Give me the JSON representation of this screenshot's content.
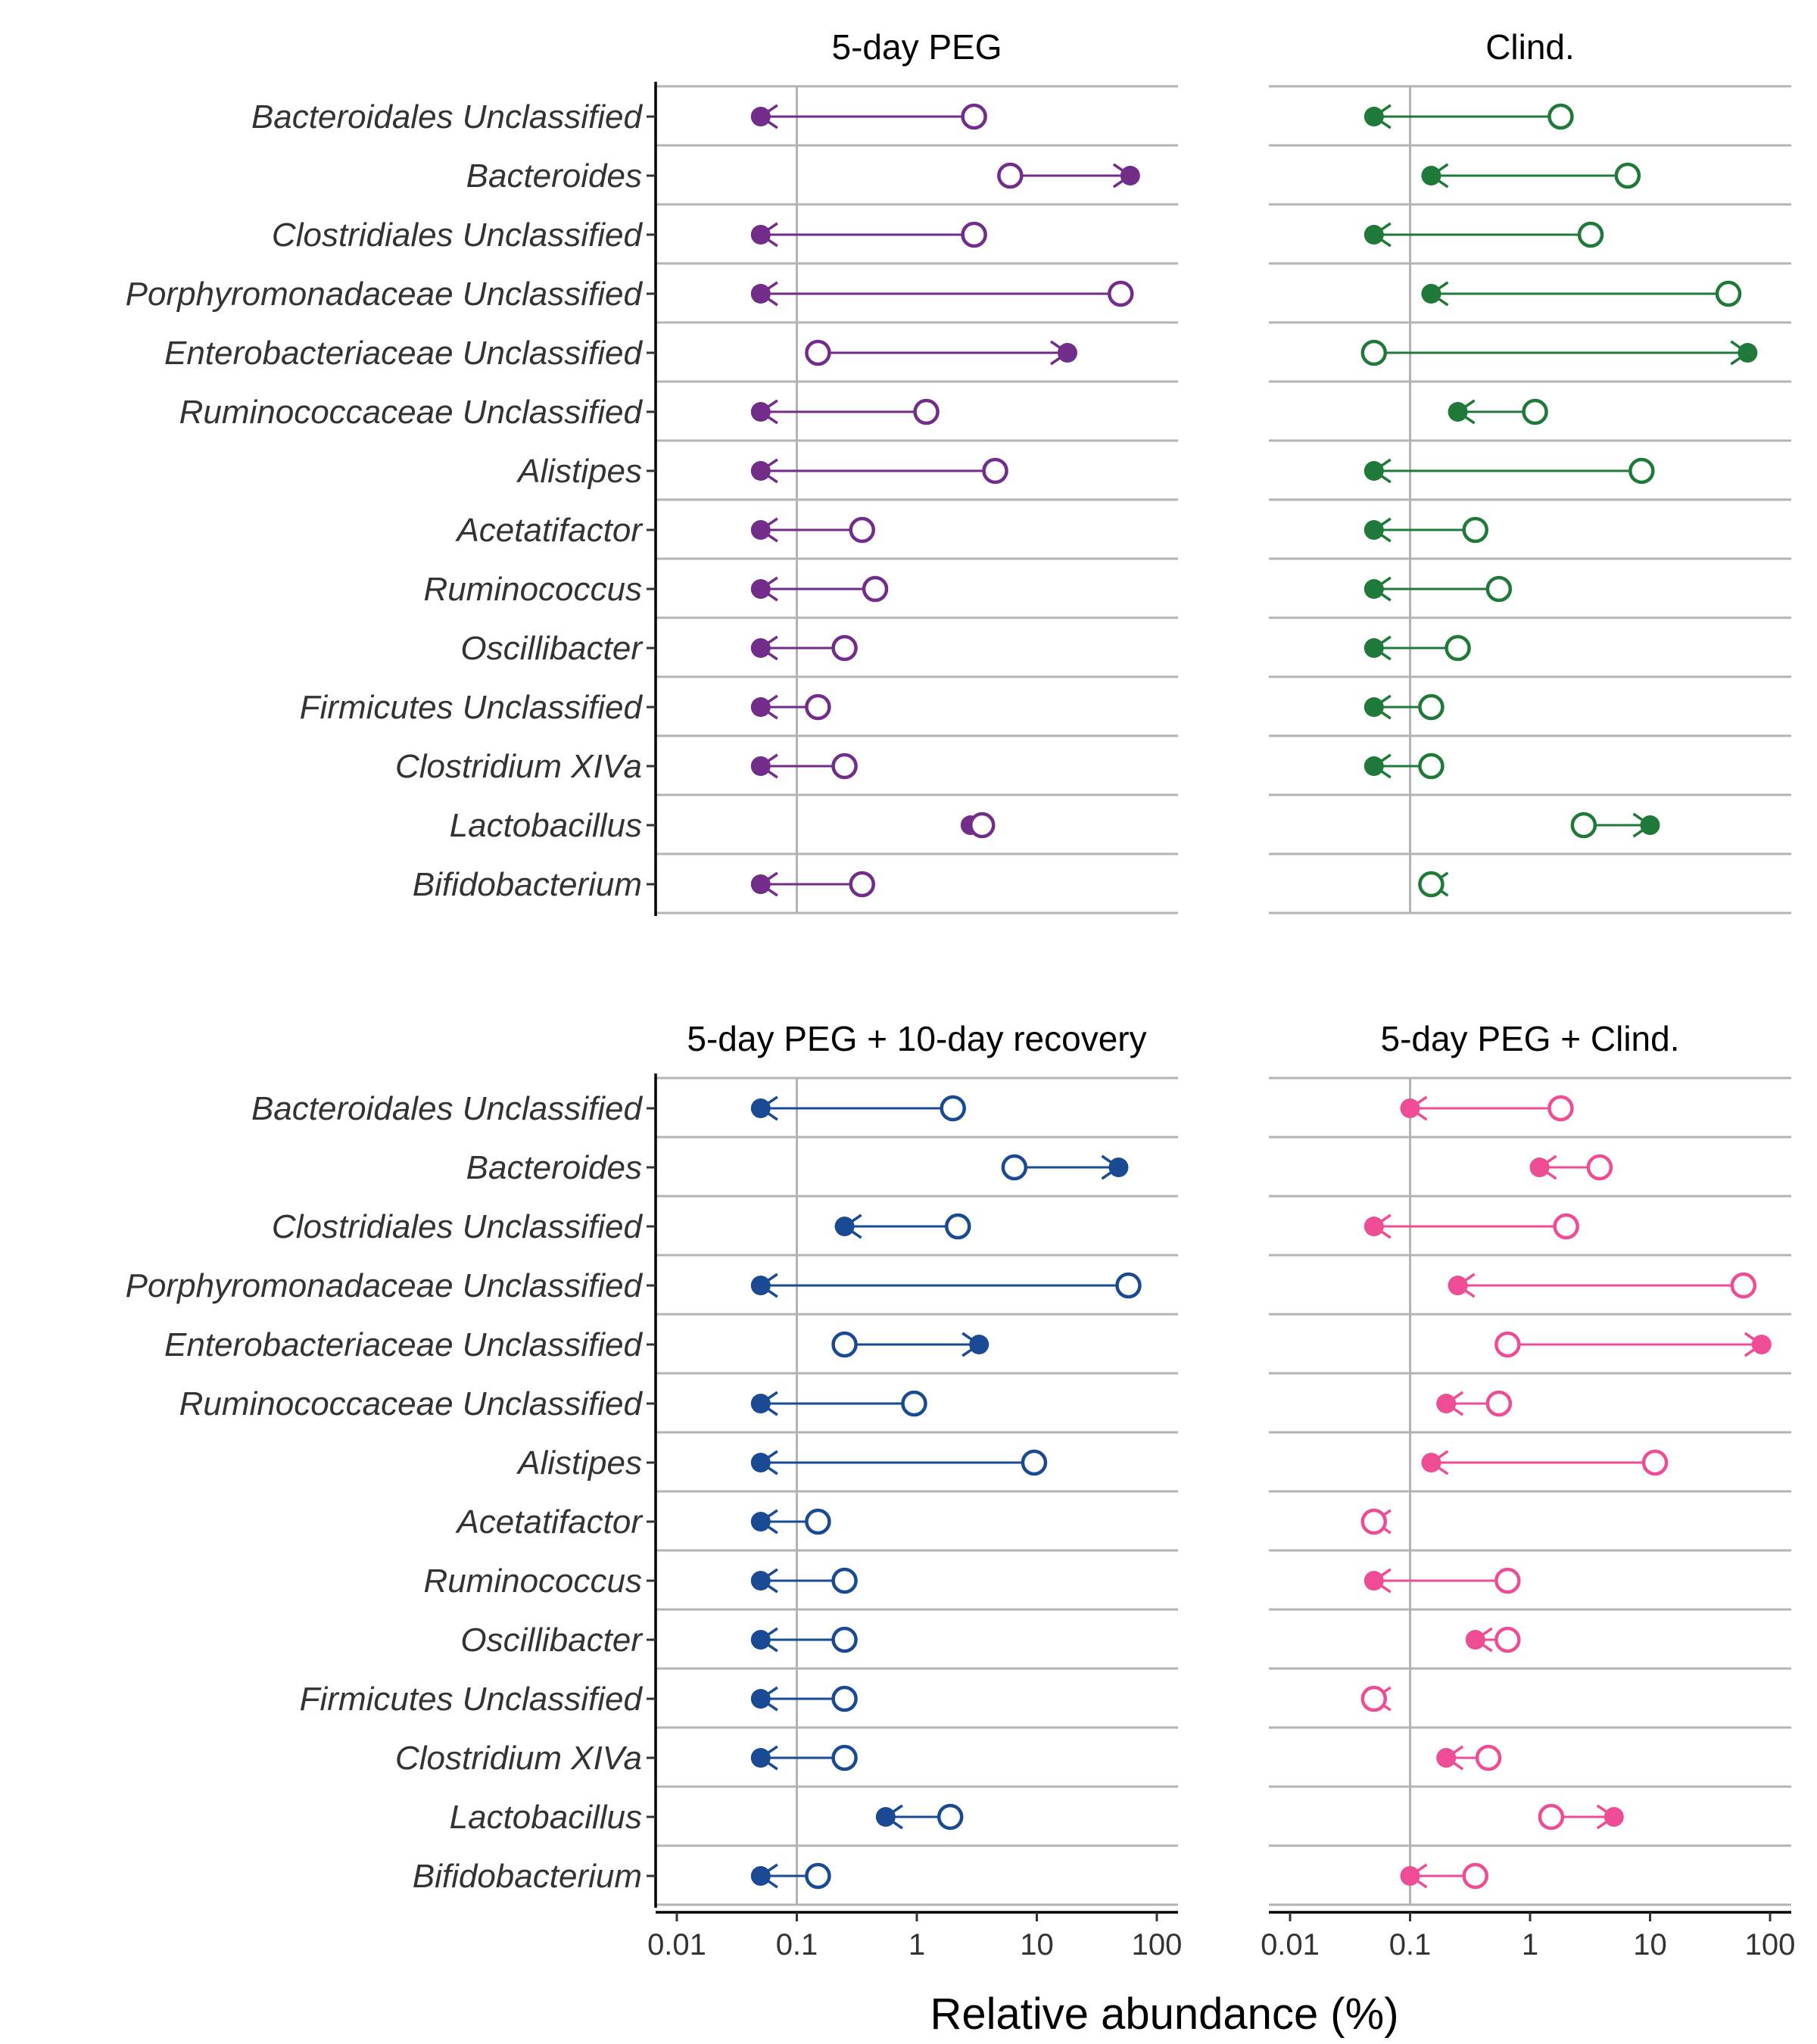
{
  "chart_data": {
    "type": "dumbbell",
    "xlabel": "Relative abundance (%)",
    "x_scale": "log10",
    "xlim": [
      0.01,
      100
    ],
    "x_ticks": [
      "0.01",
      "0.1",
      "1",
      "10",
      "100"
    ],
    "grid_x": [
      0.1
    ],
    "taxa": [
      "Bacteroidales Unclassified",
      "Bacteroides",
      "Clostridiales Unclassified",
      "Porphyromonadaceae Unclassified",
      "Enterobacteriaceae Unclassified",
      "Ruminococcaceae Unclassified",
      "Alistipes",
      "Acetatifactor",
      "Ruminococcus",
      "Oscillibacter",
      "Firmicutes Unclassified",
      "Clostridium XIVa",
      "Lactobacillus",
      "Bifidobacterium"
    ],
    "encoding": "open circle = start value, filled circle with arrow = end value",
    "panels": [
      {
        "title": "5-day PEG",
        "color": "#722C8A",
        "start": [
          3,
          6,
          3,
          50,
          0.15,
          1.2,
          4.5,
          0.35,
          0.45,
          0.25,
          0.15,
          0.25,
          3.5,
          0.35
        ],
        "end": [
          0.05,
          60,
          0.05,
          0.05,
          18,
          0.05,
          0.05,
          0.05,
          0.05,
          0.05,
          0.05,
          0.05,
          2.8,
          0.05
        ]
      },
      {
        "title": "Clind.",
        "color": "#1F7A3A",
        "start": [
          1.8,
          6.5,
          3.2,
          45,
          0.05,
          1.1,
          8.5,
          0.35,
          0.55,
          0.25,
          0.15,
          0.15,
          2.8,
          0.15
        ],
        "end": [
          0.05,
          0.15,
          0.05,
          0.15,
          65,
          0.25,
          0.05,
          0.05,
          0.05,
          0.05,
          0.05,
          0.05,
          10,
          0.15
        ]
      },
      {
        "title": "5-day PEG + 10-day recovery",
        "color": "#1A4A94",
        "start": [
          2,
          6.5,
          2.2,
          58,
          0.25,
          0.95,
          9.5,
          0.15,
          0.25,
          0.25,
          0.25,
          0.25,
          1.9,
          0.15
        ],
        "end": [
          0.05,
          48,
          0.25,
          0.05,
          3.3,
          0.05,
          0.05,
          0.05,
          0.05,
          0.05,
          0.05,
          0.05,
          0.55,
          0.05
        ]
      },
      {
        "title": "5-day PEG + Clind.",
        "color": "#EE4D96",
        "start": [
          1.8,
          3.8,
          2.0,
          60,
          0.65,
          0.55,
          11,
          0.05,
          0.65,
          0.65,
          0.05,
          0.45,
          1.5,
          0.35
        ],
        "end": [
          0.1,
          1.2,
          0.05,
          0.25,
          85,
          0.2,
          0.15,
          0.05,
          0.05,
          0.35,
          0.05,
          0.2,
          5,
          0.1
        ]
      }
    ]
  }
}
